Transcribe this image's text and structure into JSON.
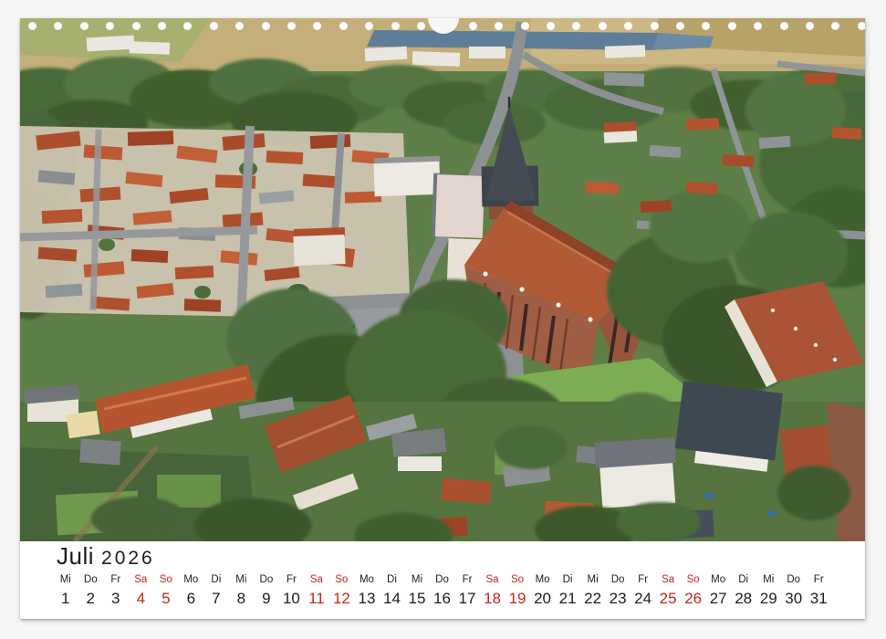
{
  "window": {
    "background": "#f6f6f4"
  },
  "sheet": {
    "paper_color": "#ffffff",
    "binding": {
      "hole_count": 32,
      "hole_color": "#ffffff",
      "hanger_notch": true
    }
  },
  "photo": {
    "description": "Aerial summer view of a small north German town: a large medieval brick church with a dark slate spire beside the grey market square, dense red-tiled rooftops, big green tree clusters, houses with gardens in the foreground and fields with a lake on the horizon.",
    "palette": {
      "trees": "#4a6a38",
      "roofs": "#b0552f",
      "church_brick": "#9c5a41",
      "spire": "#42474e",
      "streets": "#8d9193",
      "fields": "#c6b07b",
      "lake": "#5d7d98",
      "lawn": "#7cad55"
    }
  },
  "calendar": {
    "month_label": "Juli",
    "year_label": "2026",
    "text_color": "#1d1d1b",
    "weekend_color": "#c2271c",
    "days": [
      {
        "date": 1,
        "weekday": "Mi",
        "is_weekend": false
      },
      {
        "date": 2,
        "weekday": "Do",
        "is_weekend": false
      },
      {
        "date": 3,
        "weekday": "Fr",
        "is_weekend": false
      },
      {
        "date": 4,
        "weekday": "Sa",
        "is_weekend": true
      },
      {
        "date": 5,
        "weekday": "So",
        "is_weekend": true
      },
      {
        "date": 6,
        "weekday": "Mo",
        "is_weekend": false
      },
      {
        "date": 7,
        "weekday": "Di",
        "is_weekend": false
      },
      {
        "date": 8,
        "weekday": "Mi",
        "is_weekend": false
      },
      {
        "date": 9,
        "weekday": "Do",
        "is_weekend": false
      },
      {
        "date": 10,
        "weekday": "Fr",
        "is_weekend": false
      },
      {
        "date": 11,
        "weekday": "Sa",
        "is_weekend": true
      },
      {
        "date": 12,
        "weekday": "So",
        "is_weekend": true
      },
      {
        "date": 13,
        "weekday": "Mo",
        "is_weekend": false
      },
      {
        "date": 14,
        "weekday": "Di",
        "is_weekend": false
      },
      {
        "date": 15,
        "weekday": "Mi",
        "is_weekend": false
      },
      {
        "date": 16,
        "weekday": "Do",
        "is_weekend": false
      },
      {
        "date": 17,
        "weekday": "Fr",
        "is_weekend": false
      },
      {
        "date": 18,
        "weekday": "Sa",
        "is_weekend": true
      },
      {
        "date": 19,
        "weekday": "So",
        "is_weekend": true
      },
      {
        "date": 20,
        "weekday": "Mo",
        "is_weekend": false
      },
      {
        "date": 21,
        "weekday": "Di",
        "is_weekend": false
      },
      {
        "date": 22,
        "weekday": "Mi",
        "is_weekend": false
      },
      {
        "date": 23,
        "weekday": "Do",
        "is_weekend": false
      },
      {
        "date": 24,
        "weekday": "Fr",
        "is_weekend": false
      },
      {
        "date": 25,
        "weekday": "Sa",
        "is_weekend": true
      },
      {
        "date": 26,
        "weekday": "So",
        "is_weekend": true
      },
      {
        "date": 27,
        "weekday": "Mo",
        "is_weekend": false
      },
      {
        "date": 28,
        "weekday": "Di",
        "is_weekend": false
      },
      {
        "date": 29,
        "weekday": "Mi",
        "is_weekend": false
      },
      {
        "date": 30,
        "weekday": "Do",
        "is_weekend": false
      },
      {
        "date": 31,
        "weekday": "Fr",
        "is_weekend": false
      }
    ]
  }
}
